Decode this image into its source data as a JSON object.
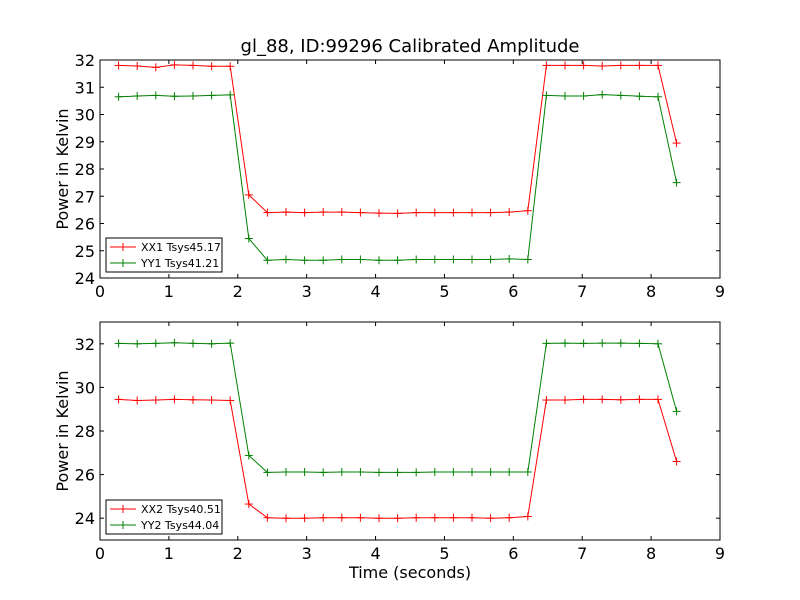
{
  "figure": {
    "title": "gl_88, ID:99296 Calibrated Amplitude",
    "xlabel": "Time (seconds)"
  },
  "chart_data": [
    {
      "type": "line",
      "title": "gl_88, ID:99296 Calibrated Amplitude",
      "xlabel": "",
      "ylabel": "Power in Kelvin",
      "xlim": [
        0,
        9
      ],
      "ylim": [
        24,
        32
      ],
      "xticks": [
        0,
        1,
        2,
        3,
        4,
        5,
        6,
        7,
        8,
        9
      ],
      "yticks": [
        24,
        25,
        26,
        27,
        28,
        29,
        30,
        31,
        32
      ],
      "grid": false,
      "legend_position": "bottom-left",
      "x": [
        0.27,
        0.54,
        0.81,
        1.08,
        1.35,
        1.62,
        1.89,
        2.16,
        2.43,
        2.7,
        2.97,
        3.24,
        3.51,
        3.78,
        4.05,
        4.32,
        4.59,
        4.86,
        5.13,
        5.4,
        5.67,
        5.94,
        6.21,
        6.48,
        6.75,
        7.02,
        7.29,
        7.56,
        7.83,
        8.1,
        8.37
      ],
      "series": [
        {
          "name": "XX1 Tsys45.17",
          "color": "#ff0000",
          "values": [
            31.8,
            31.78,
            31.73,
            31.82,
            31.8,
            31.77,
            31.77,
            27.05,
            26.4,
            26.42,
            26.4,
            26.42,
            26.42,
            26.4,
            26.38,
            26.37,
            26.4,
            26.4,
            26.4,
            26.4,
            26.4,
            26.42,
            26.47,
            31.8,
            31.8,
            31.8,
            31.78,
            31.8,
            31.8,
            31.8,
            28.95
          ]
        },
        {
          "name": "YY1 Tsys41.21",
          "color": "#008000",
          "values": [
            30.65,
            30.68,
            30.7,
            30.67,
            30.68,
            30.7,
            30.72,
            25.45,
            24.65,
            24.68,
            24.65,
            24.65,
            24.68,
            24.68,
            24.65,
            24.65,
            24.68,
            24.68,
            24.68,
            24.68,
            24.68,
            24.7,
            24.68,
            30.7,
            30.68,
            30.68,
            30.73,
            30.7,
            30.67,
            30.65,
            27.5
          ]
        }
      ]
    },
    {
      "type": "line",
      "title": "",
      "xlabel": "Time (seconds)",
      "ylabel": "Power in Kelvin",
      "xlim": [
        0,
        9
      ],
      "ylim": [
        23,
        33
      ],
      "xticks": [
        0,
        1,
        2,
        3,
        4,
        5,
        6,
        7,
        8,
        9
      ],
      "yticks": [
        24,
        26,
        28,
        30,
        32
      ],
      "grid": false,
      "legend_position": "bottom-left",
      "x": [
        0.27,
        0.54,
        0.81,
        1.08,
        1.35,
        1.62,
        1.89,
        2.16,
        2.43,
        2.7,
        2.97,
        3.24,
        3.51,
        3.78,
        4.05,
        4.32,
        4.59,
        4.86,
        5.13,
        5.4,
        5.67,
        5.94,
        6.21,
        6.48,
        6.75,
        7.02,
        7.29,
        7.56,
        7.83,
        8.1,
        8.37
      ],
      "series": [
        {
          "name": "XX2 Tsys40.51",
          "color": "#ff0000",
          "values": [
            29.45,
            29.4,
            29.42,
            29.45,
            29.43,
            29.42,
            29.4,
            24.65,
            24.02,
            24.0,
            24.0,
            24.02,
            24.02,
            24.02,
            24.0,
            24.0,
            24.02,
            24.02,
            24.02,
            24.02,
            24.0,
            24.02,
            24.08,
            29.42,
            29.42,
            29.45,
            29.45,
            29.43,
            29.45,
            29.45,
            26.6
          ]
        },
        {
          "name": "YY2 Tsys44.04",
          "color": "#008000",
          "values": [
            32.02,
            32.0,
            32.02,
            32.05,
            32.02,
            32.0,
            32.03,
            26.88,
            26.1,
            26.12,
            26.12,
            26.1,
            26.12,
            26.12,
            26.1,
            26.1,
            26.1,
            26.12,
            26.12,
            26.12,
            26.12,
            26.12,
            26.12,
            32.02,
            32.03,
            32.02,
            32.03,
            32.03,
            32.02,
            32.0,
            28.9
          ]
        }
      ]
    }
  ]
}
